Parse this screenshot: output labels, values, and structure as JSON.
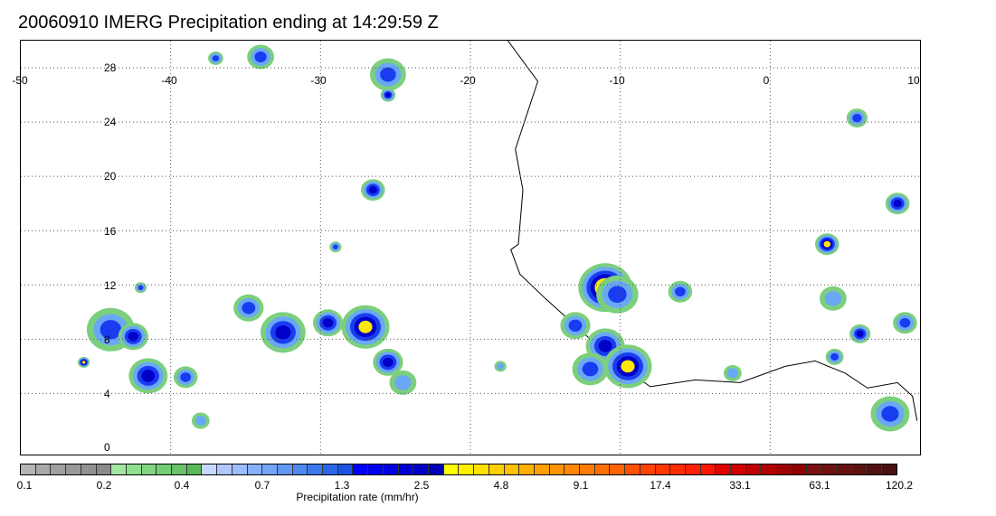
{
  "title": "20060910 IMERG Precipitation ending at 14:29:59 Z",
  "map": {
    "lon_labels": [
      "-50",
      "-40",
      "-30",
      "-20",
      "-10",
      "0",
      "10"
    ],
    "lat_labels": [
      "28",
      "24",
      "20",
      "16",
      "12",
      "8",
      "4",
      "0"
    ],
    "extent": {
      "lon_min": -50,
      "lon_max": 10,
      "lat_min": -0.5,
      "lat_max": 30
    }
  },
  "colorbar": {
    "label": "Precipitation rate (mm/hr)",
    "ticks": [
      "0.1",
      "0.2",
      "0.4",
      "0.7",
      "1.3",
      "2.5",
      "4.8",
      "9.1",
      "17.4",
      "33.1",
      "63.1",
      "120.2"
    ],
    "colors": [
      "#b5b5b5",
      "#a8a8a8",
      "#a0a0a0",
      "#999999",
      "#919191",
      "#8a8a8a",
      "#a2e6a2",
      "#90de90",
      "#82d482",
      "#74cc74",
      "#68c268",
      "#5cb85c",
      "#c6d8ff",
      "#b0c8ff",
      "#9cbcfb",
      "#88b0f8",
      "#74a4f5",
      "#6298f2",
      "#4f88ee",
      "#3c78ea",
      "#2a66e5",
      "#1a54e0",
      "#0000ff",
      "#0000f0",
      "#0000e2",
      "#0000d4",
      "#0000c6",
      "#0000b8",
      "#ffff00",
      "#fff000",
      "#ffe000",
      "#ffd000",
      "#ffc000",
      "#ffb000",
      "#ffa000",
      "#ff9400",
      "#ff8800",
      "#ff7c00",
      "#ff7000",
      "#ff6400",
      "#ff5000",
      "#ff4400",
      "#ff3800",
      "#ff2c00",
      "#ff2000",
      "#ff1400",
      "#e00000",
      "#d00000",
      "#c00000",
      "#b00000",
      "#a00000",
      "#900000",
      "#7a1010",
      "#701010",
      "#661010",
      "#5c1010",
      "#521010",
      "#481010"
    ]
  },
  "rain_cells": [
    {
      "lon": -44,
      "lat": 8.7,
      "r": 1.6,
      "level": 3
    },
    {
      "lon": -42.5,
      "lat": 8.2,
      "r": 1.0,
      "level": 4
    },
    {
      "lon": -41.5,
      "lat": 5.3,
      "r": 1.3,
      "level": 4
    },
    {
      "lon": -39,
      "lat": 5.2,
      "r": 0.8,
      "level": 3
    },
    {
      "lon": -45.8,
      "lat": 6.3,
      "r": 0.4,
      "level": 5
    },
    {
      "lon": -32.5,
      "lat": 8.5,
      "r": 1.5,
      "level": 4
    },
    {
      "lon": -29.5,
      "lat": 9.2,
      "r": 1.0,
      "level": 4
    },
    {
      "lon": -27,
      "lat": 8.9,
      "r": 1.6,
      "level": 5
    },
    {
      "lon": -25.5,
      "lat": 6.3,
      "r": 1.0,
      "level": 4
    },
    {
      "lon": -24.5,
      "lat": 4.8,
      "r": 0.9,
      "level": 2
    },
    {
      "lon": -34.8,
      "lat": 10.3,
      "r": 1.0,
      "level": 3
    },
    {
      "lon": -26.5,
      "lat": 19.0,
      "r": 0.8,
      "level": 4
    },
    {
      "lon": -25.5,
      "lat": 27.5,
      "r": 1.2,
      "level": 3
    },
    {
      "lon": -25.5,
      "lat": 26.0,
      "r": 0.5,
      "level": 4
    },
    {
      "lon": -34,
      "lat": 28.8,
      "r": 0.9,
      "level": 3
    },
    {
      "lon": -37,
      "lat": 28.7,
      "r": 0.5,
      "level": 3
    },
    {
      "lon": -11,
      "lat": 11.8,
      "r": 1.8,
      "level": 6
    },
    {
      "lon": -10.2,
      "lat": 11.3,
      "r": 1.4,
      "level": 3
    },
    {
      "lon": -13,
      "lat": 9.0,
      "r": 1.0,
      "level": 3
    },
    {
      "lon": -11,
      "lat": 7.5,
      "r": 1.3,
      "level": 4
    },
    {
      "lon": -9.5,
      "lat": 6.0,
      "r": 1.6,
      "level": 5
    },
    {
      "lon": -12,
      "lat": 5.8,
      "r": 1.2,
      "level": 3
    },
    {
      "lon": -6,
      "lat": 11.5,
      "r": 0.8,
      "level": 3
    },
    {
      "lon": 3.8,
      "lat": 15.0,
      "r": 0.8,
      "level": 5
    },
    {
      "lon": 8.5,
      "lat": 18.0,
      "r": 0.8,
      "level": 4
    },
    {
      "lon": 5.8,
      "lat": 24.3,
      "r": 0.7,
      "level": 3
    },
    {
      "lon": 6.0,
      "lat": 8.4,
      "r": 0.7,
      "level": 4
    },
    {
      "lon": 9.0,
      "lat": 9.2,
      "r": 0.8,
      "level": 3
    },
    {
      "lon": 4.2,
      "lat": 11.0,
      "r": 0.9,
      "level": 2
    },
    {
      "lon": 8.0,
      "lat": 2.5,
      "r": 1.3,
      "level": 3
    },
    {
      "lon": 4.3,
      "lat": 6.7,
      "r": 0.6,
      "level": 3
    },
    {
      "lon": -42,
      "lat": 11.8,
      "r": 0.4,
      "level": 3
    },
    {
      "lon": -38,
      "lat": 2.0,
      "r": 0.6,
      "level": 2
    },
    {
      "lon": -29,
      "lat": 14.8,
      "r": 0.4,
      "level": 3
    },
    {
      "lon": -2.5,
      "lat": 5.5,
      "r": 0.6,
      "level": 2
    },
    {
      "lon": -18,
      "lat": 6.0,
      "r": 0.4,
      "level": 2
    }
  ]
}
